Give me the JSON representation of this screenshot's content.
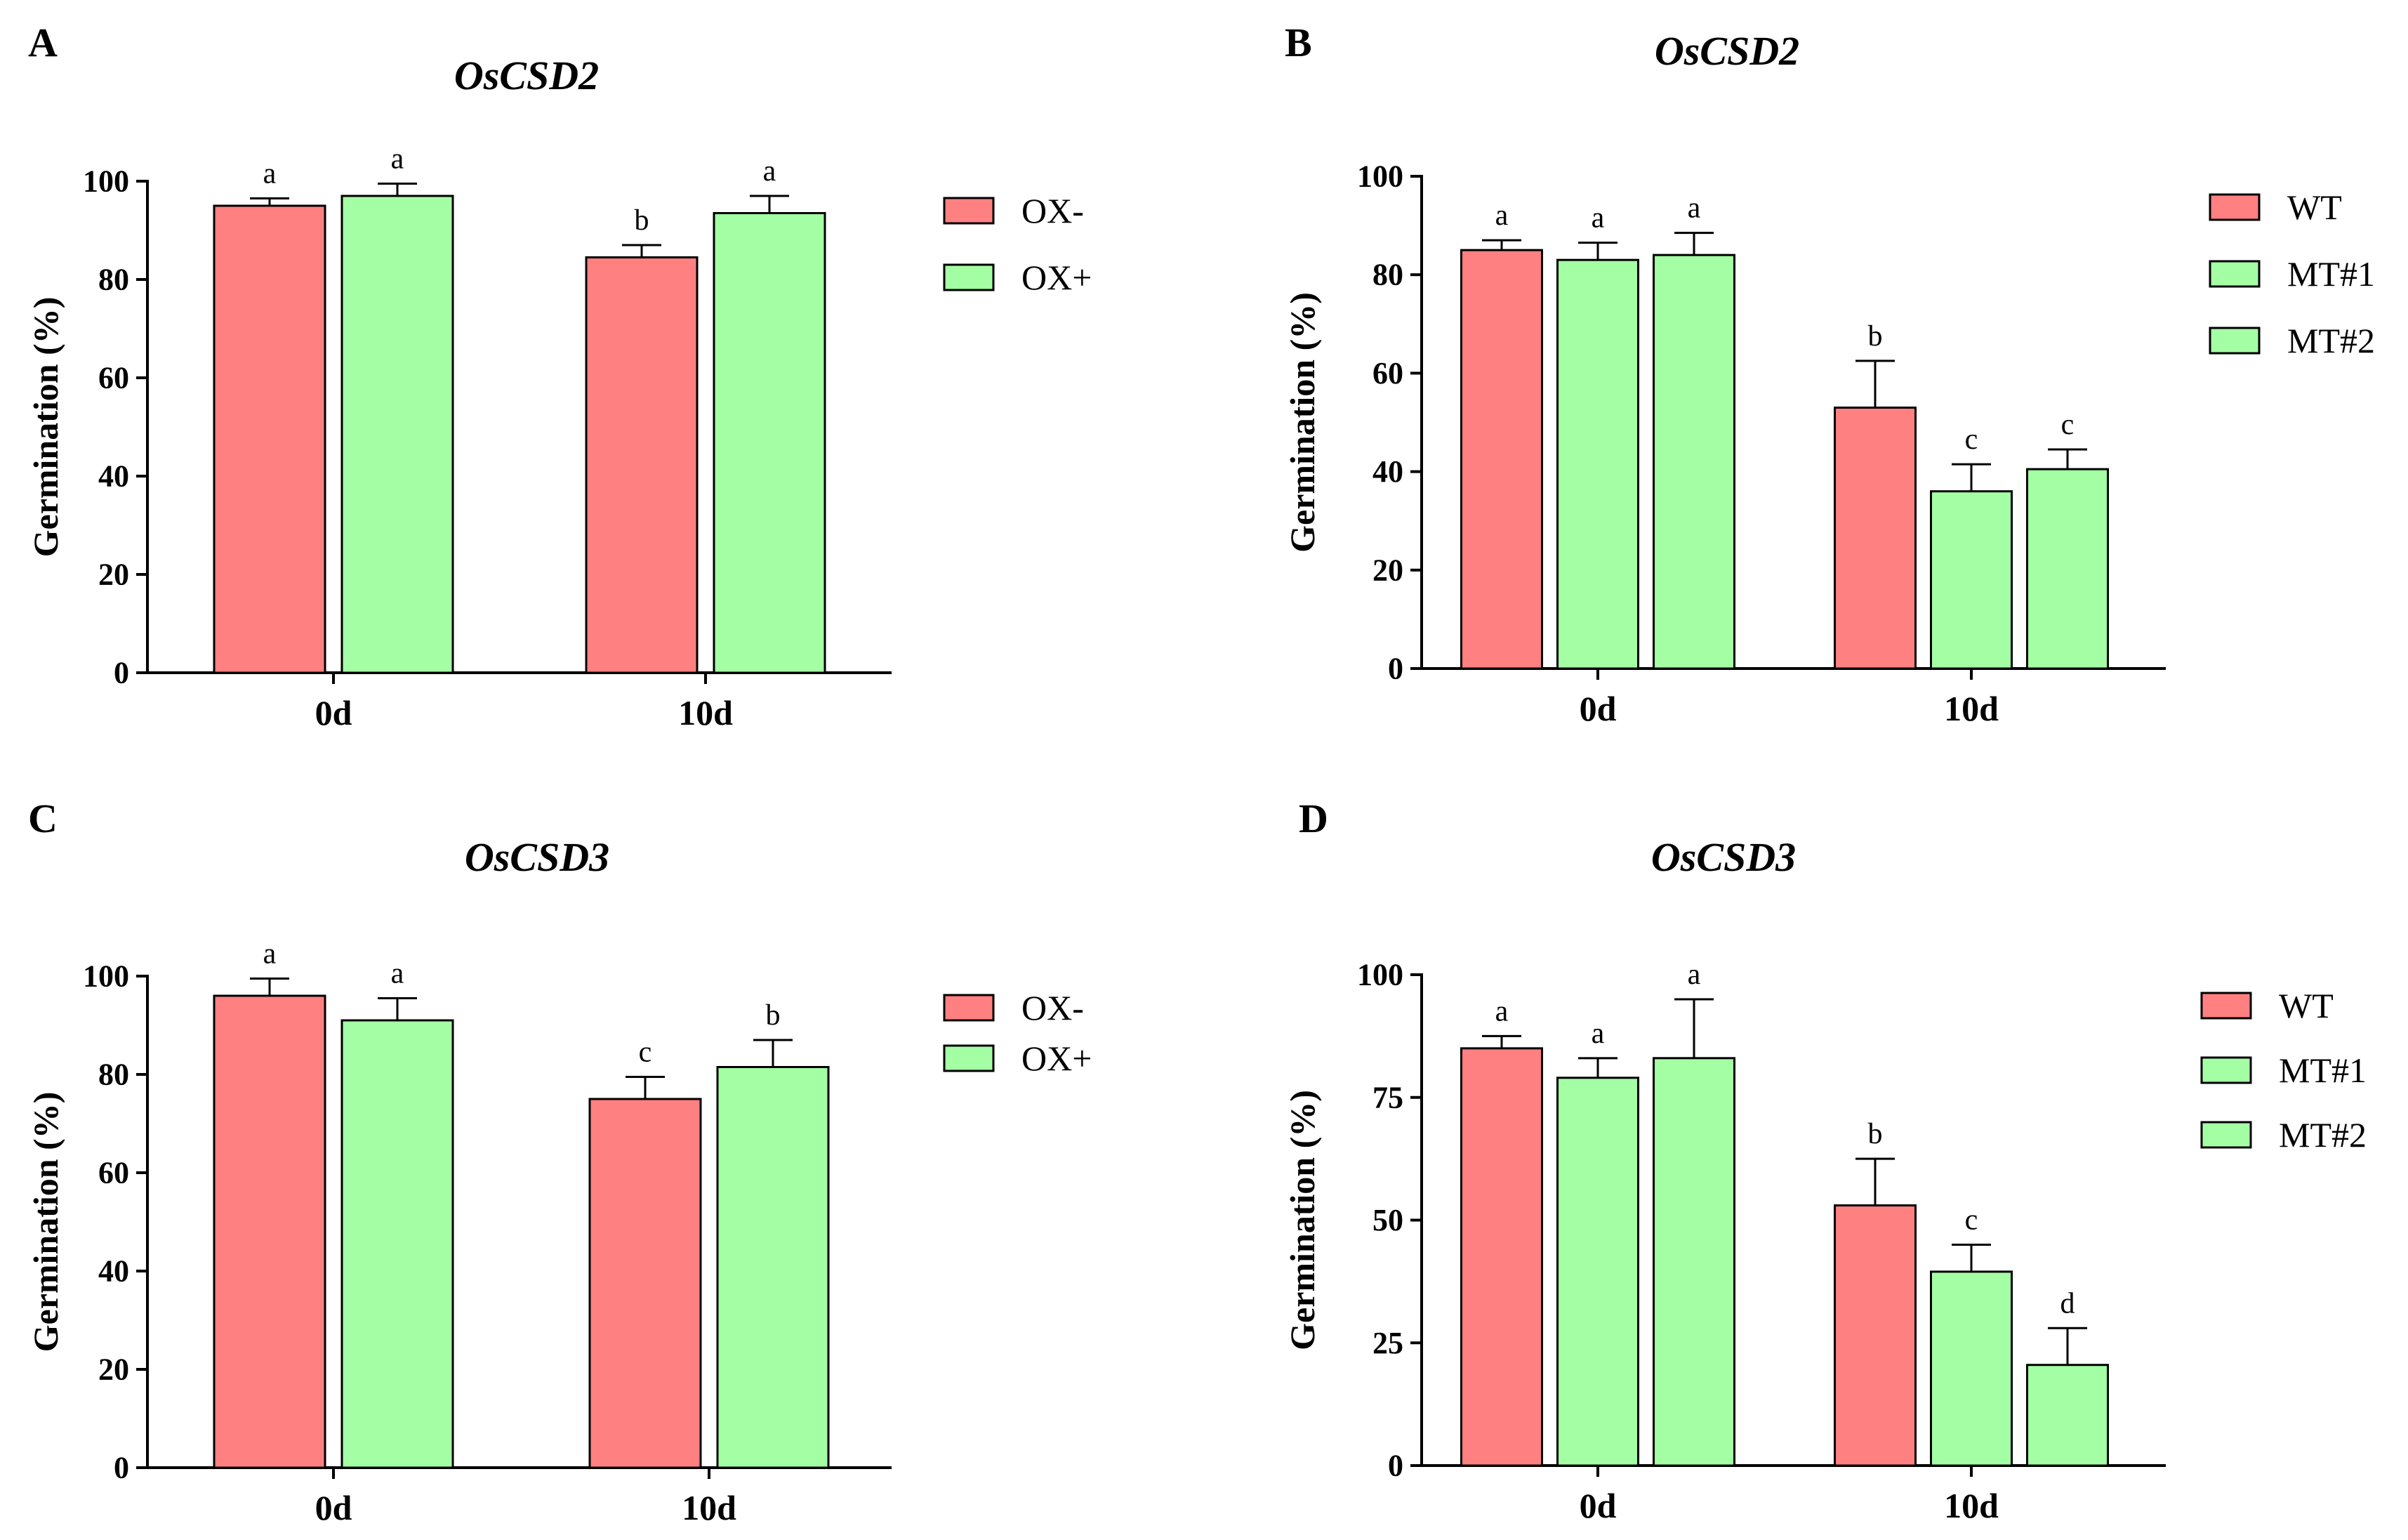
{
  "colors": {
    "series_1": "#ff8080",
    "series_2": "#a4ffa4",
    "axis": "#000000"
  },
  "chart_data": [
    {
      "panel": "A",
      "type": "bar",
      "title": "OsCSD2",
      "ylabel": "Germination (%)",
      "xlabel": "",
      "ylim": [
        0,
        100
      ],
      "yticks": [
        0,
        20,
        40,
        60,
        80,
        100
      ],
      "categories": [
        "0d",
        "10d"
      ],
      "legend_position": "right",
      "series": [
        {
          "name": "OX-",
          "values": [
            95,
            84.5
          ],
          "errors": [
            1.5,
            2.5
          ],
          "letters": [
            "a",
            "b"
          ]
        },
        {
          "name": "OX+",
          "values": [
            97,
            93.5
          ],
          "errors": [
            2.5,
            3.5
          ],
          "letters": [
            "a",
            "a"
          ]
        }
      ]
    },
    {
      "panel": "B",
      "type": "bar",
      "title": "OsCSD2",
      "ylabel": "Germination (%)",
      "xlabel": "",
      "ylim": [
        0,
        100
      ],
      "yticks": [
        0,
        20,
        40,
        60,
        80,
        100
      ],
      "categories": [
        "0d",
        "10d"
      ],
      "legend_position": "right",
      "series": [
        {
          "name": "WT",
          "values": [
            85,
            53
          ],
          "errors": [
            2,
            9.5
          ],
          "letters": [
            "a",
            "b"
          ]
        },
        {
          "name": "MT#1",
          "values": [
            83,
            36
          ],
          "errors": [
            3.5,
            5.5
          ],
          "letters": [
            "a",
            "c"
          ]
        },
        {
          "name": "MT#2",
          "values": [
            84,
            40.5
          ],
          "errors": [
            4.5,
            4
          ],
          "letters": [
            "a",
            "c"
          ]
        }
      ]
    },
    {
      "panel": "C",
      "type": "bar",
      "title": "OsCSD3",
      "ylabel": "Germination (%)",
      "xlabel": "",
      "ylim": [
        0,
        100
      ],
      "yticks": [
        0,
        20,
        40,
        60,
        80,
        100
      ],
      "categories": [
        "0d",
        "10d"
      ],
      "legend_position": "right",
      "series": [
        {
          "name": "OX-",
          "values": [
            96,
            75
          ],
          "errors": [
            3.5,
            4.5
          ],
          "letters": [
            "a",
            "c"
          ]
        },
        {
          "name": "OX+",
          "values": [
            91,
            81.5
          ],
          "errors": [
            4.5,
            5.5
          ],
          "letters": [
            "a",
            "b"
          ]
        }
      ]
    },
    {
      "panel": "D",
      "type": "bar",
      "title": "OsCSD3",
      "ylabel": "Germination (%)",
      "xlabel": "",
      "ylim": [
        0,
        100
      ],
      "yticks": [
        0,
        25,
        50,
        75,
        100
      ],
      "categories": [
        "0d",
        "10d"
      ],
      "legend_position": "right",
      "series": [
        {
          "name": "WT",
          "values": [
            85,
            53
          ],
          "errors": [
            2.5,
            9.5
          ],
          "letters": [
            "a",
            "b"
          ]
        },
        {
          "name": "MT#1",
          "values": [
            79,
            39.5
          ],
          "errors": [
            4,
            5.5
          ],
          "letters": [
            "a",
            "c"
          ]
        },
        {
          "name": "MT#2",
          "values": [
            83,
            20.5
          ],
          "errors": [
            12,
            7.5
          ],
          "letters": [
            "a",
            "d"
          ]
        }
      ]
    }
  ]
}
